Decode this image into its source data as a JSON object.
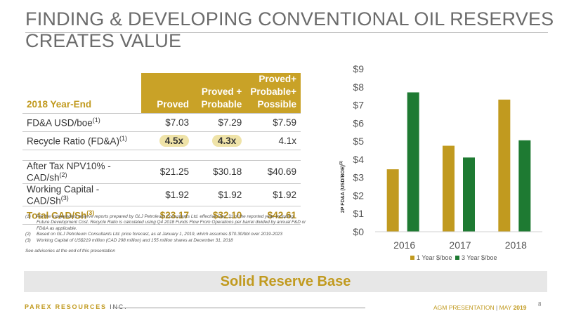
{
  "slide": {
    "title": "FINDING & DEVELOPING CONVENTIONAL OIL RESERVES CREATES VALUE",
    "banner": "Solid Reserve Base",
    "page_number": "8"
  },
  "table": {
    "year_end_label": "2018 Year-End",
    "columns": [
      "Proved",
      "Proved + Probable",
      "Proved+ Probable+ Possible"
    ],
    "column_lines": [
      [
        "Proved"
      ],
      [
        "Proved +",
        "Probable"
      ],
      [
        "Proved+",
        "Probable+",
        "Possible"
      ]
    ],
    "rows": {
      "fda": {
        "label": "FD&A USD/boe",
        "sup": "(1)",
        "values": [
          "$7.03",
          "$7.29",
          "$7.59"
        ]
      },
      "recycle": {
        "label": "Recycle Ratio (FD&A)",
        "sup": "(1)",
        "values": [
          "4.5x",
          "4.3x",
          "4.1x"
        ]
      },
      "npv": {
        "label": "After Tax NPV10% - CAD/sh",
        "sup": "(2)",
        "values": [
          "$21.25",
          "$30.18",
          "$40.69"
        ]
      },
      "wc": {
        "label": "Working Capital - CAD/Sh",
        "sup": "(3)",
        "values": [
          "$1.92",
          "$1.92",
          "$1.92"
        ]
      },
      "total": {
        "label": "Total CAD/Sh",
        "sup": "(3)",
        "values": [
          "$23.17",
          "$32.10",
          "$42.61"
        ]
      }
    }
  },
  "notes": {
    "items": [
      {
        "key": "(1)",
        "text": "Per the independent reserve reports prepared by GLJ Petroleum Consultants Ltd. effective Dec. 31 of the reported year, including Future Development Cost. Recycle Ratio is calculated using Q4 2018 Funds Flow From Operations per barrel divided by annual F&D or FD&A as applicable."
      },
      {
        "key": "(2)",
        "text": "Based on GLJ Petroleum Consultants Ltd. price forecast, as at January 1, 2019, which assumes $70.30/bbl over 2019-2023"
      },
      {
        "key": "(3)",
        "text": "Working Capital of US$219 million (CAD 298 million) and 155 million shares at December 31, 2018"
      }
    ],
    "advisory": "See advisories at the end of this presentation"
  },
  "chart_data": {
    "type": "bar",
    "categories": [
      "2016",
      "2017",
      "2018"
    ],
    "series": [
      {
        "name": "1 Year $/boe",
        "values": [
          3.45,
          4.75,
          7.3
        ],
        "color": "#c19a1f"
      },
      {
        "name": "3 Year $/boe",
        "values": [
          7.7,
          4.1,
          5.05
        ],
        "color": "#1e7a32"
      }
    ],
    "ylabel": "2P FD&A (USD/BOE)",
    "ylabel_sup": "(1)",
    "ylim": [
      0,
      9
    ],
    "yticks": [
      "$0",
      "$1",
      "$2",
      "$3",
      "$4",
      "$5",
      "$6",
      "$7",
      "$8",
      "$9"
    ],
    "legend": "bottom",
    "grid": false
  },
  "footer": {
    "brand": "PAREX RESOURCES",
    "suffix": "INC.",
    "event": "AGM PRESENTATION",
    "separator": "|",
    "month": "MAY",
    "year": "2019"
  }
}
